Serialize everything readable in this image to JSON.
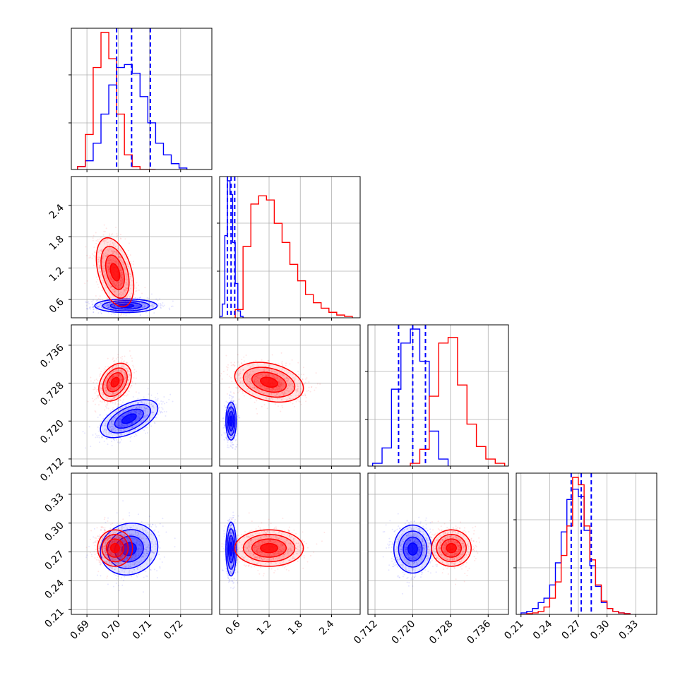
{
  "chart_data": {
    "type": "corner",
    "colors": {
      "series_a": "#0000ff",
      "series_b": "#ff0000"
    },
    "grid": true,
    "parameters": [
      {
        "range": [
          0.685,
          0.73
        ],
        "ticks": [
          "0.69",
          "0.70",
          "0.71",
          "0.72"
        ],
        "tick_values": [
          0.69,
          0.7,
          0.71,
          0.72
        ]
      },
      {
        "range": [
          0.25,
          2.95
        ],
        "ticks": [
          "0.6",
          "1.2",
          "1.8",
          "2.4"
        ],
        "tick_values": [
          0.6,
          1.2,
          1.8,
          2.4
        ]
      },
      {
        "range": [
          0.7105,
          0.7403
        ],
        "ticks": [
          "0.712",
          "0.720",
          "0.728",
          "0.736"
        ],
        "tick_values": [
          0.712,
          0.72,
          0.728,
          0.736
        ]
      },
      {
        "range": [
          0.205,
          0.352
        ],
        "ticks": [
          "0.21",
          "0.24",
          "0.27",
          "0.30",
          "0.33"
        ],
        "tick_values": [
          0.21,
          0.24,
          0.27,
          0.3,
          0.33
        ]
      }
    ],
    "marginals": [
      {
        "series_a": {
          "bins": [
            0.687,
            0.6895,
            0.692,
            0.6945,
            0.697,
            0.6995,
            0.702,
            0.7045,
            0.707,
            0.7095,
            0.712,
            0.7145,
            0.717,
            0.7195,
            0.722
          ],
          "counts": [
            0.02,
            0.06,
            0.18,
            0.38,
            0.58,
            0.7,
            0.72,
            0.66,
            0.5,
            0.32,
            0.18,
            0.1,
            0.04,
            0.01
          ]
        },
        "series_b": {
          "bins": [
            0.687,
            0.6895,
            0.692,
            0.6945,
            0.697,
            0.6995,
            0.702,
            0.7045,
            0.707,
            0.7095,
            0.712
          ],
          "counts": [
            0.02,
            0.24,
            0.7,
            0.94,
            0.76,
            0.38,
            0.1,
            0.02,
            0.0,
            0.0
          ]
        },
        "quantiles": [
          0.6995,
          0.7043,
          0.7103
        ]
      },
      {
        "series_a": {
          "bins": [
            0.25,
            0.3,
            0.35,
            0.4,
            0.45,
            0.5,
            0.55,
            0.6,
            0.65,
            0.7
          ],
          "counts": [
            0.01,
            0.1,
            0.6,
            1.0,
            0.9,
            0.55,
            0.25,
            0.05,
            0.01
          ]
        },
        "series_b": {
          "bins": [
            0.55,
            0.7,
            0.85,
            1.0,
            1.15,
            1.3,
            1.45,
            1.6,
            1.75,
            1.9,
            2.05,
            2.2,
            2.35,
            2.5,
            2.65,
            2.8
          ],
          "counts": [
            0.06,
            0.52,
            0.83,
            0.89,
            0.86,
            0.69,
            0.55,
            0.39,
            0.27,
            0.17,
            0.11,
            0.07,
            0.04,
            0.02,
            0.01
          ]
        },
        "quantiles": [
          0.4,
          0.47,
          0.54
        ]
      },
      {
        "series_a": {
          "bins": [
            0.7115,
            0.7135,
            0.7155,
            0.7175,
            0.7195,
            0.7215,
            0.7235,
            0.7255,
            0.7275
          ],
          "counts": [
            0.02,
            0.13,
            0.55,
            0.88,
            0.98,
            0.75,
            0.25,
            0.05
          ]
        },
        "series_b": {
          "bins": [
            0.7195,
            0.7215,
            0.7235,
            0.7255,
            0.7275,
            0.7295,
            0.7315,
            0.7335,
            0.7355,
            0.7375,
            0.7395
          ],
          "counts": [
            0.02,
            0.12,
            0.5,
            0.88,
            0.92,
            0.58,
            0.3,
            0.14,
            0.05,
            0.02
          ]
        },
        "quantiles": [
          0.717,
          0.72,
          0.7227
        ]
      },
      {
        "series_a": {
          "bins": [
            0.21,
            0.216,
            0.222,
            0.228,
            0.234,
            0.24,
            0.246,
            0.252,
            0.258,
            0.264,
            0.27,
            0.276,
            0.282,
            0.288,
            0.294,
            0.3,
            0.306,
            0.312,
            0.318,
            0.324
          ],
          "counts": [
            0.01,
            0.02,
            0.04,
            0.08,
            0.11,
            0.2,
            0.35,
            0.56,
            0.78,
            0.85,
            0.8,
            0.57,
            0.33,
            0.19,
            0.08,
            0.04,
            0.02,
            0.01,
            0.005
          ]
        },
        "series_b": {
          "bins": [
            0.21,
            0.216,
            0.222,
            0.228,
            0.234,
            0.24,
            0.246,
            0.252,
            0.258,
            0.264,
            0.27,
            0.276,
            0.282,
            0.288,
            0.294,
            0.3,
            0.306,
            0.312,
            0.318,
            0.324
          ],
          "counts": [
            0.0,
            0.005,
            0.01,
            0.02,
            0.05,
            0.11,
            0.22,
            0.4,
            0.6,
            0.93,
            0.88,
            0.6,
            0.37,
            0.2,
            0.09,
            0.04,
            0.02,
            0.01,
            0.005
          ]
        },
        "quantiles": [
          0.2625,
          0.273,
          0.2835
        ]
      }
    ],
    "joint": [
      {
        "x": 0,
        "y": 1,
        "series_a": {
          "mean": [
            0.7025,
            0.48
          ],
          "std": [
            0.005,
            0.065
          ],
          "corr": 0.0
        },
        "series_b": {
          "mean": [
            0.699,
            1.12
          ],
          "std": [
            0.003,
            0.33
          ],
          "corr": -0.4
        }
      },
      {
        "x": 0,
        "y": 2,
        "series_a": {
          "mean": [
            0.7035,
            0.7205
          ],
          "std": [
            0.0046,
            0.002
          ],
          "corr": 0.55
        },
        "series_b": {
          "mean": [
            0.699,
            0.7282
          ],
          "std": [
            0.0026,
            0.002
          ],
          "corr": 0.35
        }
      },
      {
        "x": 1,
        "y": 2,
        "series_a": {
          "mean": [
            0.47,
            0.72
          ],
          "std": [
            0.05,
            0.002
          ],
          "corr": 0.0
        },
        "series_b": {
          "mean": [
            1.2,
            0.7282
          ],
          "std": [
            0.33,
            0.0021
          ],
          "corr": -0.3
        }
      },
      {
        "x": 0,
        "y": 3,
        "series_a": {
          "mean": [
            0.7035,
            0.273
          ],
          "std": [
            0.0046,
            0.0135
          ],
          "corr": 0.1
        },
        "series_b": {
          "mean": [
            0.699,
            0.274
          ],
          "std": [
            0.0028,
            0.0095
          ],
          "corr": 0.0
        }
      },
      {
        "x": 1,
        "y": 3,
        "series_a": {
          "mean": [
            0.47,
            0.273
          ],
          "std": [
            0.05,
            0.014
          ],
          "corr": 0.0
        },
        "series_b": {
          "mean": [
            1.2,
            0.274
          ],
          "std": [
            0.33,
            0.0095
          ],
          "corr": 0.0
        }
      },
      {
        "x": 2,
        "y": 3,
        "series_a": {
          "mean": [
            0.72,
            0.273
          ],
          "std": [
            0.002,
            0.0125
          ],
          "corr": 0.0
        },
        "series_b": {
          "mean": [
            0.7282,
            0.274
          ],
          "std": [
            0.0021,
            0.0095
          ],
          "corr": 0.0
        }
      }
    ],
    "contour_levels_sigma": [
      0.5,
      1.0,
      1.5,
      2.0
    ]
  }
}
